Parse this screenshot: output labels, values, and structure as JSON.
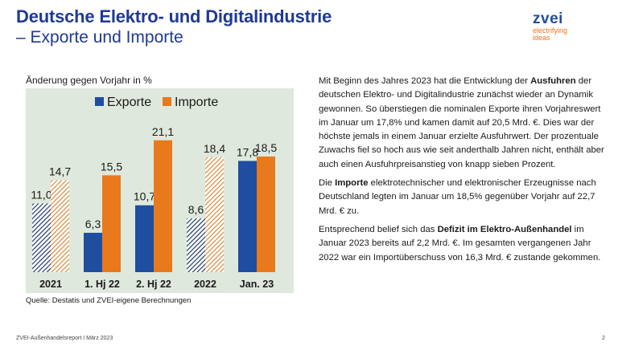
{
  "title_line1": "Deutsche Elektro- und Digitalindustrie",
  "title_line2": "– Exporte und Importe",
  "logo": {
    "word": "zvei",
    "tagline1": "electrifying",
    "tagline2": "ideas"
  },
  "chart_caption": "Änderung gegen Vorjahr in %",
  "source": "Quelle: Destatis und ZVEI-eigene Berechnungen",
  "colors": {
    "exports": "#1f4ea0",
    "imports": "#e8791c",
    "background": "#dfe8dc"
  },
  "chart_data": {
    "type": "bar",
    "categories": [
      "2021",
      "1. Hj 22",
      "2. Hj 22",
      "2022",
      "Jan. 23"
    ],
    "series": [
      {
        "name": "Exporte",
        "values": [
          11.0,
          6.3,
          10.7,
          8.6,
          17.8
        ],
        "labels": [
          "11,0",
          "6,3",
          "10,7",
          "8,6",
          "17,8"
        ]
      },
      {
        "name": "Importe",
        "values": [
          14.7,
          15.5,
          21.1,
          18.4,
          18.5
        ],
        "labels": [
          "14,7",
          "15,5",
          "21,1",
          "18,4",
          "18,5"
        ]
      }
    ],
    "hatched_categories": [
      "2021",
      "2022"
    ],
    "ylim": [
      0,
      23
    ],
    "legend": "top-center",
    "grid": false
  },
  "text": {
    "p1": [
      {
        "t": "Mit Beginn des Jahres 2023 hat die Entwicklung der "
      },
      {
        "t": "Ausfuhren",
        "b": true
      },
      {
        "t": " der deutschen Elektro- und Digitalindustrie zunächst wieder an Dynamik gewonnen. So überstiegen die nominalen Exporte ihren Vorjahreswert im Januar um 17,8% und kamen damit auf 20,5 Mrd. €. Dies war der höchste jemals in einem Januar erzielte Ausfuhrwert. Der prozentuale Zuwachs fiel so hoch aus wie seit anderthalb Jahren nicht, enthält aber auch einen Ausfuhrpreisanstieg von knapp sieben Prozent."
      }
    ],
    "p2": [
      {
        "t": "Die "
      },
      {
        "t": "Importe",
        "b": true
      },
      {
        "t": " elektrotechnischer und elektronischer Erzeugnisse nach Deutschland legten im Januar um 18,5% gegenüber Vorjahr auf 22,7 Mrd. € zu."
      }
    ],
    "p3": [
      {
        "t": "Entsprechend belief sich das "
      },
      {
        "t": "Defizit im Elektro-Außenhandel",
        "b": true
      },
      {
        "t": " im Januar 2023 bereits auf 2,2 Mrd. €. Im gesamten vergangenen Jahr 2022 war ein Importüberschuss von 16,3 Mrd. € zustande gekommen."
      }
    ]
  },
  "footer": {
    "left": "ZVEI-Außenhandelsreport I März 2023",
    "page": "2"
  }
}
